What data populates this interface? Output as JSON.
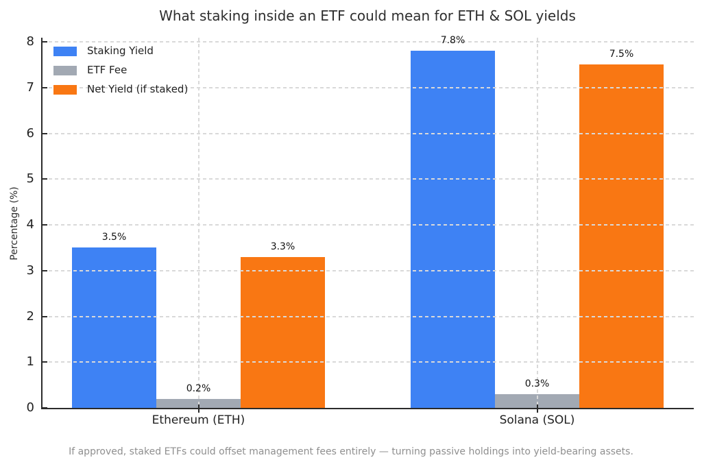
{
  "chart_data": {
    "type": "bar",
    "title": "What staking inside an ETF could mean for ETH & SOL yields",
    "categories": [
      "Ethereum (ETH)",
      "Solana (SOL)"
    ],
    "series": [
      {
        "name": "Staking Yield",
        "color": "#3e82f4",
        "values": [
          3.5,
          7.8
        ],
        "value_labels": [
          "3.5%",
          "7.8%"
        ]
      },
      {
        "name": "ETF Fee",
        "color": "#a2a9b3",
        "values": [
          0.2,
          0.3
        ],
        "value_labels": [
          "0.2%",
          "0.3%"
        ]
      },
      {
        "name": "Net Yield (if staked)",
        "color": "#f97713",
        "values": [
          3.3,
          7.5
        ],
        "value_labels": [
          "3.3%",
          "7.5%"
        ]
      }
    ],
    "ylabel": "Percentage (%)",
    "xlabel": "",
    "ylim": [
      0,
      8
    ],
    "yticks": [
      0,
      1,
      2,
      3,
      4,
      5,
      6,
      7,
      8
    ],
    "grid": "dashed horizontal lines at each integer and dashed vertical lines at category centers, drawn above bars",
    "legend_position": "upper-left",
    "caption": "If approved, staked ETFs could offset management fees entirely — turning passive holdings into yield-bearing assets."
  },
  "colors": {
    "grid": "#d9d9d9",
    "spine": "#2b2b2b",
    "title_text": "#2e2e2e",
    "caption_text": "#8f8f8f"
  }
}
